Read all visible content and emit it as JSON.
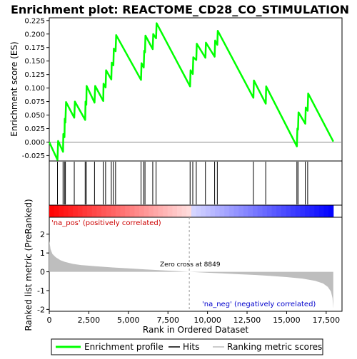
{
  "chart_data": {
    "type": "line",
    "title": "Enrichment plot: REACTOME_CD28_CO_STIMULATION",
    "top_panel": {
      "ylabel": "Enrichment score (ES)",
      "ylim": [
        -0.035,
        0.23
      ],
      "yticks": [
        "0.225",
        "0.200",
        "0.175",
        "0.150",
        "0.125",
        "0.100",
        "0.075",
        "0.050",
        "0.025",
        "0.000",
        "-0.025"
      ],
      "series": [
        {
          "name": "Enrichment profile",
          "color": "#00ff00",
          "points": [
            [
              0,
              0.0
            ],
            [
              520,
              -0.033
            ],
            [
              560,
              0.002
            ],
            [
              870,
              -0.018
            ],
            [
              890,
              0.015
            ],
            [
              960,
              0.009
            ],
            [
              980,
              0.043
            ],
            [
              1020,
              0.036
            ],
            [
              1060,
              0.074
            ],
            [
              1580,
              0.045
            ],
            [
              1620,
              0.075
            ],
            [
              2270,
              0.041
            ],
            [
              2290,
              0.075
            ],
            [
              2340,
              0.069
            ],
            [
              2360,
              0.104
            ],
            [
              2860,
              0.073
            ],
            [
              2900,
              0.104
            ],
            [
              3410,
              0.076
            ],
            [
              3430,
              0.108
            ],
            [
              3560,
              0.101
            ],
            [
              3590,
              0.133
            ],
            [
              3920,
              0.116
            ],
            [
              3950,
              0.147
            ],
            [
              4050,
              0.142
            ],
            [
              4080,
              0.173
            ],
            [
              4190,
              0.168
            ],
            [
              4230,
              0.198
            ],
            [
              5800,
              0.115
            ],
            [
              5830,
              0.146
            ],
            [
              5970,
              0.138
            ],
            [
              6000,
              0.169
            ],
            [
              6050,
              0.166
            ],
            [
              6080,
              0.197
            ],
            [
              6540,
              0.172
            ],
            [
              6570,
              0.2
            ],
            [
              6750,
              0.192
            ],
            [
              6780,
              0.22
            ],
            [
              8900,
              0.103
            ],
            [
              8930,
              0.133
            ],
            [
              9070,
              0.126
            ],
            [
              9100,
              0.157
            ],
            [
              9290,
              0.152
            ],
            [
              9320,
              0.182
            ],
            [
              9870,
              0.156
            ],
            [
              9900,
              0.184
            ],
            [
              10450,
              0.158
            ],
            [
              10480,
              0.188
            ],
            [
              10620,
              0.18
            ],
            [
              10650,
              0.206
            ],
            [
              12900,
              0.082
            ],
            [
              12930,
              0.114
            ],
            [
              13680,
              0.071
            ],
            [
              13710,
              0.103
            ],
            [
              15650,
              -0.008
            ],
            [
              15680,
              0.025
            ],
            [
              15720,
              0.023
            ],
            [
              15750,
              0.055
            ],
            [
              16180,
              0.034
            ],
            [
              16210,
              0.064
            ],
            [
              16330,
              0.058
            ],
            [
              16360,
              0.09
            ],
            [
              17950,
              0.001
            ]
          ]
        }
      ]
    },
    "hits": [
      520,
      870,
      960,
      1020,
      1580,
      2270,
      2340,
      2860,
      3410,
      3560,
      3920,
      4050,
      4190,
      5800,
      5970,
      6050,
      6540,
      6750,
      8900,
      9070,
      9290,
      9870,
      10450,
      10620,
      12900,
      13680,
      15650,
      15720,
      16180,
      16330
    ],
    "bottom_panel": {
      "ylabel": "Ranked list metric (PreRanked)",
      "xlabel": "Rank in Ordered Dataset",
      "ylim": [
        -2.1,
        2.9
      ],
      "yticks": [
        "2",
        "1",
        "0",
        "-1",
        "-2"
      ],
      "xticks": [
        "0",
        "2,500",
        "5,000",
        "7,500",
        "10,000",
        "12,500",
        "15,000",
        "17,500"
      ],
      "xlim": [
        0,
        18500
      ],
      "metric_profile": [
        [
          0,
          1.65
        ],
        [
          80,
          1.2
        ],
        [
          200,
          0.95
        ],
        [
          400,
          0.78
        ],
        [
          700,
          0.62
        ],
        [
          1000,
          0.52
        ],
        [
          1500,
          0.42
        ],
        [
          2000,
          0.36
        ],
        [
          3000,
          0.29
        ],
        [
          4000,
          0.23
        ],
        [
          5000,
          0.18
        ],
        [
          6000,
          0.13
        ],
        [
          7000,
          0.08
        ],
        [
          8000,
          0.04
        ],
        [
          8849,
          0.0
        ],
        [
          10000,
          -0.05
        ],
        [
          11000,
          -0.09
        ],
        [
          12000,
          -0.13
        ],
        [
          13000,
          -0.17
        ],
        [
          14000,
          -0.22
        ],
        [
          15000,
          -0.28
        ],
        [
          16000,
          -0.36
        ],
        [
          16800,
          -0.48
        ],
        [
          17300,
          -0.62
        ],
        [
          17600,
          -0.8
        ],
        [
          17800,
          -1.05
        ],
        [
          17900,
          -1.4
        ],
        [
          17950,
          -1.95
        ]
      ],
      "zero_cross_label": "Zero cross at 8849",
      "zero_cross_rank": 8849,
      "pos_label": "'na_pos' (positively correlated)",
      "neg_label": "'na_neg' (negatively correlated)"
    },
    "legend": {
      "placement": "bottom",
      "items": [
        "Enrichment profile",
        "Hits",
        "Ranking metric scores"
      ]
    },
    "colors": {
      "profile": "#00ff00",
      "pos_label": "#cc0000",
      "neg_label": "#0000cc",
      "metric_fill": "#bebebe",
      "zero_line": "#999999"
    }
  }
}
